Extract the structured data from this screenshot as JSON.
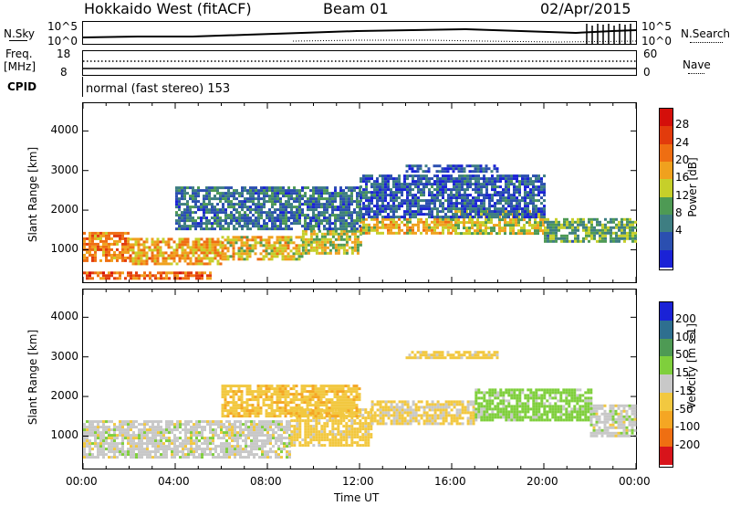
{
  "header": {
    "station": "Hokkaido West (fitACF)",
    "beam": "Beam 01",
    "date": "02/Apr/2015"
  },
  "noise_panel": {
    "left_label": "N.Sky",
    "right_label": "N.Search",
    "ticks_left": [
      "10^5",
      "10^0"
    ],
    "ticks_right": [
      "10^5",
      "10^0"
    ]
  },
  "freq_panel": {
    "left_label_line1": "Freq.",
    "left_label_line2": "[MHz]",
    "ticks_left": [
      "18",
      "8"
    ],
    "right_label": "Nave",
    "ticks_right": [
      "60",
      "0"
    ]
  },
  "cpid": {
    "label": "CPID",
    "text": "normal (fast stereo) 153"
  },
  "chart_data": [
    {
      "type": "heatmap",
      "title": "",
      "xlabel": "Time UT",
      "ylabel": "Slant Range [km]",
      "x_ticks": [
        "00:00",
        "04:00",
        "08:00",
        "12:00",
        "16:00",
        "20:00",
        "00:00"
      ],
      "y_ticks": [
        1000,
        2000,
        3000,
        4000
      ],
      "xlim_hours": [
        0,
        24
      ],
      "ylim": [
        180,
        4700
      ],
      "colorbar": {
        "label": "Power [dB]",
        "ticks": [
          4,
          8,
          12,
          16,
          20,
          24,
          28
        ],
        "colors": [
          "#1a22d6",
          "#2b4fb0",
          "#3e7e82",
          "#4e9a54",
          "#c6cf2a",
          "#f0a11e",
          "#ef6e12",
          "#e23b0c",
          "#d40f0a"
        ]
      },
      "regions": [
        {
          "t0": 0.0,
          "t1": 2.0,
          "r0": 700,
          "r1": 1450,
          "level": 22
        },
        {
          "t0": 2.0,
          "t1": 6.0,
          "r0": 650,
          "r1": 1300,
          "level": 20
        },
        {
          "t0": 6.0,
          "t1": 9.5,
          "r0": 750,
          "r1": 1350,
          "level": 18
        },
        {
          "t0": 9.5,
          "t1": 12.0,
          "r0": 900,
          "r1": 1500,
          "level": 16
        },
        {
          "t0": 12.0,
          "t1": 16.0,
          "r0": 1450,
          "r1": 1800,
          "level": 18
        },
        {
          "t0": 16.0,
          "t1": 20.0,
          "r0": 1400,
          "r1": 2000,
          "level": 16
        },
        {
          "t0": 20.0,
          "t1": 24.0,
          "r0": 1200,
          "r1": 1800,
          "level": 12
        },
        {
          "t0": 0.0,
          "t1": 5.5,
          "r0": 250,
          "r1": 450,
          "level": 24
        },
        {
          "t0": 4.0,
          "t1": 12.0,
          "r0": 1500,
          "r1": 2600,
          "level": 8
        },
        {
          "t0": 12.0,
          "t1": 20.0,
          "r0": 1800,
          "r1": 2900,
          "level": 6
        },
        {
          "t0": 14.0,
          "t1": 18.0,
          "r0": 3000,
          "r1": 3150,
          "level": 5
        }
      ]
    },
    {
      "type": "heatmap",
      "title": "",
      "xlabel": "Time UT",
      "ylabel": "Slant Range [km]",
      "x_ticks": [
        "00:00",
        "04:00",
        "08:00",
        "12:00",
        "16:00",
        "20:00",
        "00:00"
      ],
      "y_ticks": [
        1000,
        2000,
        3000,
        4000
      ],
      "xlim_hours": [
        0,
        24
      ],
      "ylim": [
        180,
        4700
      ],
      "colorbar": {
        "label": "Velocity [m s-1]",
        "ticks": [
          "-200",
          "-100",
          "-50",
          "-15",
          "15",
          "50",
          "100",
          "200"
        ],
        "colors": [
          "#d8141b",
          "#ef6f12",
          "#f5a623",
          "#f2c840",
          "#c8c8c8",
          "#7fcf3c",
          "#4e9a54",
          "#2e6f8f",
          "#1a22d6"
        ]
      },
      "regions": [
        {
          "t0": 0.0,
          "t1": 9.0,
          "r0": 500,
          "r1": 1400,
          "level": 0
        },
        {
          "t0": 9.0,
          "t1": 12.5,
          "r0": 800,
          "r1": 1700,
          "level": -30
        },
        {
          "t0": 12.5,
          "t1": 17.0,
          "r0": 1300,
          "r1": 1900,
          "level": -20
        },
        {
          "t0": 17.0,
          "t1": 22.0,
          "r0": 1400,
          "r1": 2200,
          "level": 30
        },
        {
          "t0": 22.0,
          "t1": 24.0,
          "r0": 1000,
          "r1": 1800,
          "level": 0
        },
        {
          "t0": 6.0,
          "t1": 12.0,
          "r0": 1500,
          "r1": 2300,
          "level": -40
        },
        {
          "t0": 14.0,
          "t1": 18.0,
          "r0": 3000,
          "r1": 3150,
          "level": -30
        }
      ]
    }
  ]
}
